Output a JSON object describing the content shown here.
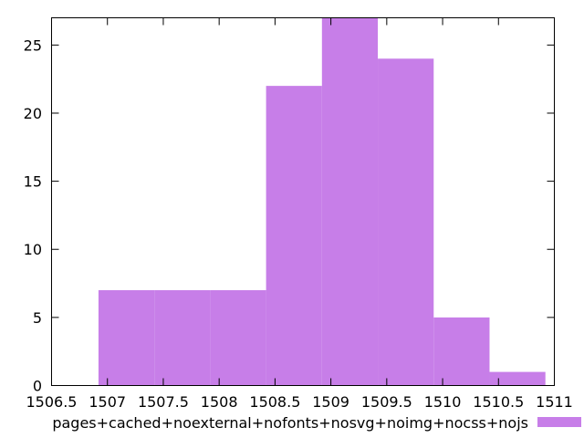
{
  "chart_data": {
    "type": "bar",
    "title": "",
    "xlabel": "",
    "ylabel": "",
    "xlim": [
      1506.5,
      1511
    ],
    "ylim": [
      0,
      27
    ],
    "grid": false,
    "legend_position": "bottom-right",
    "x_ticks": [
      "1506.5",
      "1507",
      "1507.5",
      "1508",
      "1508.5",
      "1509",
      "1509.5",
      "1510",
      "1510.5",
      "1511"
    ],
    "y_ticks": [
      "0",
      "5",
      "10",
      "15",
      "20",
      "25"
    ],
    "bin_width": 0.5,
    "bins": [
      {
        "x": 1506.92,
        "value": 7
      },
      {
        "x": 1507.42,
        "value": 7
      },
      {
        "x": 1507.92,
        "value": 7
      },
      {
        "x": 1508.42,
        "value": 22
      },
      {
        "x": 1508.92,
        "value": 27
      },
      {
        "x": 1509.42,
        "value": 24
      },
      {
        "x": 1509.92,
        "value": 5
      },
      {
        "x": 1510.42,
        "value": 1
      }
    ],
    "series": [
      {
        "name": "pages+cached+noexternal+nofonts+nosvg+noimg+nocss+nojs",
        "color": "#c77ee8"
      }
    ]
  }
}
